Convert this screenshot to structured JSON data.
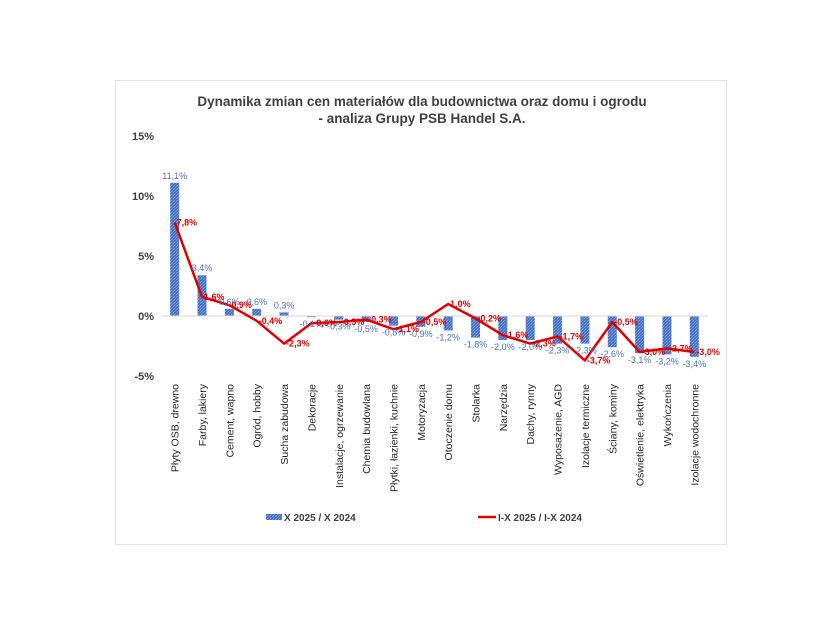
{
  "chart_data": {
    "type": "bar",
    "title_lines": [
      "Dynamika zmian cen materiałów dla budownictwa oraz domu i ogrodu",
      "- analiza Grupy PSB Handel S.A."
    ],
    "ylim": [
      -5,
      15
    ],
    "yticks": [
      "-5%",
      "0%",
      "5%",
      "10%",
      "15%"
    ],
    "ytick_values": [
      -5,
      0,
      5,
      10,
      15
    ],
    "categories": [
      "Płyty OSB, drewno",
      "Farby, lakiery",
      "Cement, wapno",
      "Ogród, hobby",
      "Sucha zabudowa",
      "Dekoracje",
      "Instalacje, ogrzewanie",
      "Chemia budowlana",
      "Płytki, łazienki, kuchnie",
      "Motoryzacja",
      "Otoczenie domu",
      "Stolarka",
      "Narzędzia",
      "Dachy, rynny",
      "Wyposażenie, AGD",
      "Izolacje termiczne",
      "Ściany, kominy",
      "Oświetlenie, elektryka",
      "Wykończenia",
      "Izolacje wodochronne"
    ],
    "series": [
      {
        "name": "X 2025 / X 2024",
        "kind": "bar",
        "color": "#4472c4",
        "values": [
          11.1,
          3.4,
          0.6,
          0.6,
          0.3,
          -0.1,
          -0.3,
          -0.5,
          -0.8,
          -0.9,
          -1.2,
          -1.8,
          -2.0,
          -2.0,
          -2.3,
          -2.3,
          -2.6,
          -3.1,
          -3.2,
          -3.4
        ],
        "labels": [
          "11,1%",
          "3,4%",
          "0,6%",
          "0,6%",
          "0,3%",
          "-0,1%",
          "-0,3%",
          "-0,5%",
          "-0,8%",
          "-0,9%",
          "-1,2%",
          "-1,8%",
          "-2,0%",
          "-2,0%",
          "-2,3%",
          "-2,3%",
          "-2,6%",
          "-3,1%",
          "-3,2%",
          "-3,4%"
        ]
      },
      {
        "name": "I-X 2025 / I-X 2024",
        "kind": "line",
        "color": "#e00000",
        "values": [
          7.8,
          1.6,
          0.9,
          -0.4,
          -2.3,
          -0.6,
          -0.5,
          -0.3,
          -1.1,
          -0.5,
          1.0,
          -0.2,
          -1.6,
          -2.3,
          -1.7,
          -3.7,
          -0.5,
          -3.0,
          -2.7,
          -3.0
        ],
        "labels": [
          "7,8%",
          "1,6%",
          "0,9%",
          "-0,4%",
          "-2,3%",
          "-0,6%",
          "-0,5%",
          "-0,3%",
          "-1,1%",
          "-0,5%",
          "1,0%",
          "-0,2%",
          "-1,6%",
          "-2,3%",
          "-1,7%",
          "-3,7%",
          "-0,5%",
          "-3,0%",
          "-2,7%",
          "-3,0%"
        ]
      }
    ],
    "grid": false,
    "legend": "bottom"
  }
}
